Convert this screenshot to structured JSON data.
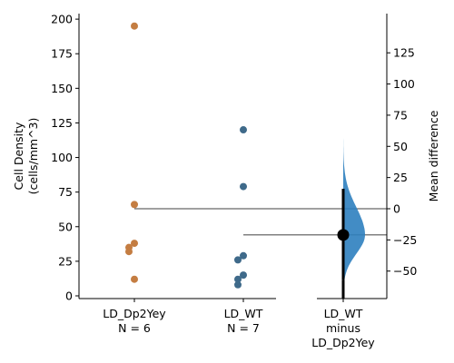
{
  "chart_data": {
    "type": "scatter",
    "subtype": "estimation-plot",
    "ylabel": [
      "Cell Density",
      "(cells/mm^3)"
    ],
    "y2label": "Mean difference",
    "ylim": [
      0,
      200
    ],
    "yticks": [
      0,
      25,
      50,
      75,
      100,
      125,
      150,
      175,
      200
    ],
    "y2lim": [
      -60,
      125
    ],
    "y2ticks": [
      -50,
      -25,
      0,
      25,
      50,
      75,
      100,
      125
    ],
    "groups": [
      {
        "category": [
          "LD_Dp2Yey",
          "N = 6"
        ],
        "color": "#c47d42",
        "values": [
          195,
          66,
          38,
          35,
          32,
          12
        ]
      },
      {
        "category": [
          "LD_WT",
          "N = 7"
        ],
        "color": "#3f6a8a",
        "values": [
          120,
          79,
          29,
          26,
          15,
          12,
          8
        ]
      }
    ],
    "delta": {
      "category": [
        "LD_WT",
        "minus",
        "LD_Dp2Yey"
      ],
      "color": "#2d7fbf",
      "mean_difference": -21,
      "ci": [
        -57,
        16
      ],
      "dist_range": [
        -65,
        63
      ],
      "dist_peak": -21
    },
    "reference_lines": {
      "group1_mean": 62.5,
      "group2_mean": 41.5
    }
  }
}
